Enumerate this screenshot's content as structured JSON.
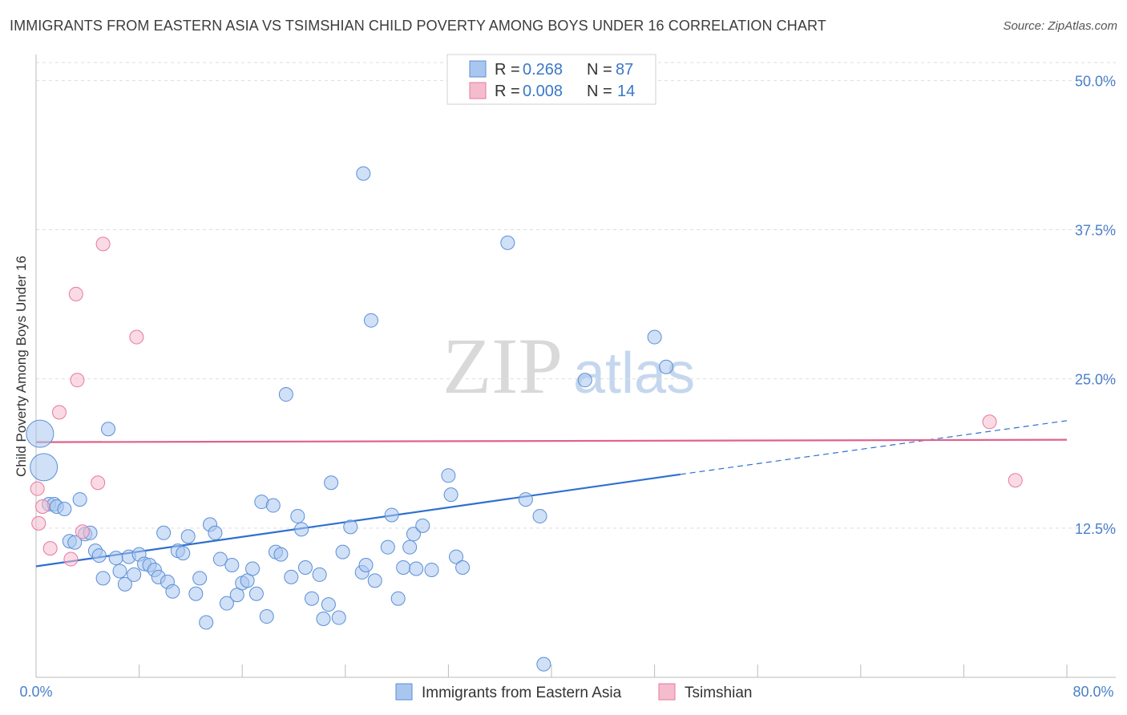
{
  "title": "IMMIGRANTS FROM EASTERN ASIA VS TSIMSHIAN CHILD POVERTY AMONG BOYS UNDER 16 CORRELATION CHART",
  "source": "Source: ZipAtlas.com",
  "watermark": {
    "zip": "ZIP",
    "atlas": "atlas"
  },
  "colors": {
    "blue": "#5b8fd8",
    "blue_fill": "#a9c6ee",
    "pink": "#e8799c",
    "pink_fill": "#f5bccd",
    "axis_text": "#4a7fc8",
    "grid": "#dddddd"
  },
  "legend": {
    "rows": [
      {
        "r_label": "R =",
        "r_value": "0.268",
        "n_label": "N =",
        "n_value": "87"
      },
      {
        "r_label": "R =",
        "r_value": "0.008",
        "n_label": "N =",
        "n_value": "14"
      }
    ]
  },
  "chart_data": {
    "type": "scatter",
    "title": "IMMIGRANTS FROM EASTERN ASIA VS TSIMSHIAN CHILD POVERTY AMONG BOYS UNDER 16 CORRELATION CHART",
    "xlabel": "",
    "ylabel": "Child Poverty Among Boys Under 16",
    "xlim": [
      0,
      80
    ],
    "ylim": [
      0,
      51.5
    ],
    "x_tick_labels": [
      "0.0%",
      "80.0%"
    ],
    "y_ticks": [
      12.5,
      25.0,
      37.5,
      50.0
    ],
    "y_tick_labels": [
      "12.5%",
      "25.0%",
      "37.5%",
      "50.0%"
    ],
    "grid": true,
    "legend_position": "top-center",
    "series": [
      {
        "name": "Immigrants from Eastern Asia",
        "color": "#5b8fd8",
        "trend": {
          "x": [
            0,
            50
          ],
          "y": [
            9.3,
            17.0
          ],
          "dashed_to": [
            80,
            21.5
          ]
        },
        "points": [
          {
            "x": 0.3,
            "y": 20.4,
            "big": true
          },
          {
            "x": 0.6,
            "y": 17.6,
            "big": true
          },
          {
            "x": 1.0,
            "y": 14.5
          },
          {
            "x": 1.4,
            "y": 14.5
          },
          {
            "x": 1.6,
            "y": 14.3
          },
          {
            "x": 2.2,
            "y": 14.1
          },
          {
            "x": 2.6,
            "y": 11.4
          },
          {
            "x": 3.0,
            "y": 11.3
          },
          {
            "x": 3.4,
            "y": 14.9
          },
          {
            "x": 3.8,
            "y": 12.0
          },
          {
            "x": 4.2,
            "y": 12.1
          },
          {
            "x": 4.6,
            "y": 10.6
          },
          {
            "x": 4.9,
            "y": 10.2
          },
          {
            "x": 5.2,
            "y": 8.3
          },
          {
            "x": 5.6,
            "y": 20.8
          },
          {
            "x": 6.2,
            "y": 10.0
          },
          {
            "x": 6.5,
            "y": 8.9
          },
          {
            "x": 6.9,
            "y": 7.8
          },
          {
            "x": 7.2,
            "y": 10.1
          },
          {
            "x": 7.6,
            "y": 8.6
          },
          {
            "x": 8.0,
            "y": 10.3
          },
          {
            "x": 8.4,
            "y": 9.5
          },
          {
            "x": 8.8,
            "y": 9.4
          },
          {
            "x": 9.2,
            "y": 9.0
          },
          {
            "x": 9.5,
            "y": 8.4
          },
          {
            "x": 9.9,
            "y": 12.1
          },
          {
            "x": 10.2,
            "y": 8.0
          },
          {
            "x": 10.6,
            "y": 7.2
          },
          {
            "x": 11.0,
            "y": 10.6
          },
          {
            "x": 11.4,
            "y": 10.4
          },
          {
            "x": 11.8,
            "y": 11.8
          },
          {
            "x": 12.4,
            "y": 7.0
          },
          {
            "x": 12.7,
            "y": 8.3
          },
          {
            "x": 13.2,
            "y": 4.6
          },
          {
            "x": 13.5,
            "y": 12.8
          },
          {
            "x": 13.9,
            "y": 12.1
          },
          {
            "x": 14.3,
            "y": 9.9
          },
          {
            "x": 14.8,
            "y": 6.2
          },
          {
            "x": 15.2,
            "y": 9.4
          },
          {
            "x": 15.6,
            "y": 6.9
          },
          {
            "x": 16.0,
            "y": 7.9
          },
          {
            "x": 16.4,
            "y": 8.1
          },
          {
            "x": 16.8,
            "y": 9.1
          },
          {
            "x": 17.1,
            "y": 7.0
          },
          {
            "x": 17.5,
            "y": 14.7
          },
          {
            "x": 17.9,
            "y": 5.1
          },
          {
            "x": 18.4,
            "y": 14.4
          },
          {
            "x": 18.6,
            "y": 10.5
          },
          {
            "x": 19.0,
            "y": 10.3
          },
          {
            "x": 19.4,
            "y": 23.7
          },
          {
            "x": 19.8,
            "y": 8.4
          },
          {
            "x": 20.3,
            "y": 13.5
          },
          {
            "x": 20.6,
            "y": 12.4
          },
          {
            "x": 20.9,
            "y": 9.2
          },
          {
            "x": 21.4,
            "y": 6.6
          },
          {
            "x": 22.3,
            "y": 4.9
          },
          {
            "x": 22.0,
            "y": 8.6
          },
          {
            "x": 22.7,
            "y": 6.1
          },
          {
            "x": 22.9,
            "y": 16.3
          },
          {
            "x": 23.5,
            "y": 5.0
          },
          {
            "x": 23.8,
            "y": 10.5
          },
          {
            "x": 24.4,
            "y": 12.6
          },
          {
            "x": 25.3,
            "y": 8.8
          },
          {
            "x": 25.6,
            "y": 9.4
          },
          {
            "x": 25.4,
            "y": 42.2
          },
          {
            "x": 26.0,
            "y": 29.9
          },
          {
            "x": 26.3,
            "y": 8.1
          },
          {
            "x": 27.3,
            "y": 10.9
          },
          {
            "x": 27.6,
            "y": 13.6
          },
          {
            "x": 28.1,
            "y": 6.6
          },
          {
            "x": 28.5,
            "y": 9.2
          },
          {
            "x": 29.0,
            "y": 10.9
          },
          {
            "x": 29.3,
            "y": 12.0
          },
          {
            "x": 29.5,
            "y": 9.1
          },
          {
            "x": 30.0,
            "y": 12.7
          },
          {
            "x": 30.7,
            "y": 9.0
          },
          {
            "x": 32.0,
            "y": 16.9
          },
          {
            "x": 32.2,
            "y": 15.3
          },
          {
            "x": 32.6,
            "y": 10.1
          },
          {
            "x": 33.1,
            "y": 9.2
          },
          {
            "x": 36.6,
            "y": 36.4
          },
          {
            "x": 38.0,
            "y": 14.9
          },
          {
            "x": 39.1,
            "y": 13.5
          },
          {
            "x": 39.4,
            "y": 1.1
          },
          {
            "x": 42.6,
            "y": 24.9
          },
          {
            "x": 48.0,
            "y": 28.5
          },
          {
            "x": 48.9,
            "y": 26.0
          }
        ]
      },
      {
        "name": "Tsimshian",
        "color": "#e8799c",
        "trend": {
          "x": [
            0,
            80
          ],
          "y": [
            19.7,
            19.9
          ]
        },
        "points": [
          {
            "x": 0.1,
            "y": 15.8
          },
          {
            "x": 0.5,
            "y": 14.3
          },
          {
            "x": 1.1,
            "y": 10.8
          },
          {
            "x": 3.1,
            "y": 32.1
          },
          {
            "x": 3.2,
            "y": 24.9
          },
          {
            "x": 1.8,
            "y": 22.2
          },
          {
            "x": 2.7,
            "y": 9.9
          },
          {
            "x": 3.6,
            "y": 12.2
          },
          {
            "x": 4.8,
            "y": 16.3
          },
          {
            "x": 5.2,
            "y": 36.3
          },
          {
            "x": 7.8,
            "y": 28.5
          },
          {
            "x": 74.0,
            "y": 21.4
          },
          {
            "x": 76.0,
            "y": 16.5
          },
          {
            "x": 0.2,
            "y": 12.9
          }
        ]
      }
    ]
  }
}
